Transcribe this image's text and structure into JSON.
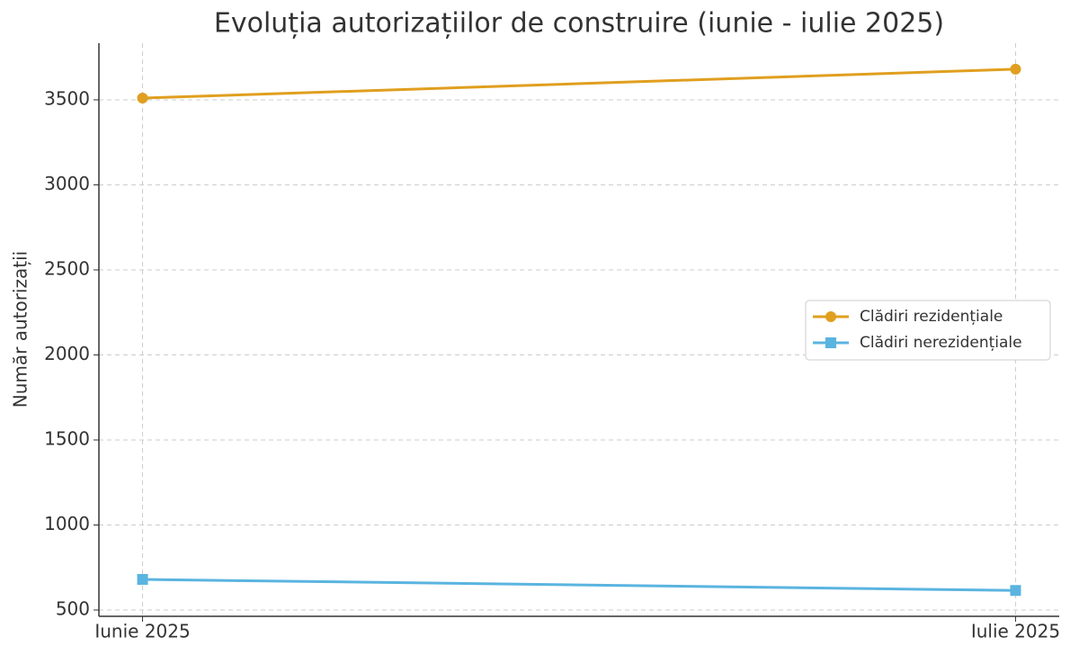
{
  "chart_data": {
    "type": "line",
    "title": "Evoluția autorizațiilor de construire (iunie - iulie 2025)",
    "y_label": "Număr autorizații",
    "categories": [
      "Iunie 2025",
      "Iulie 2025"
    ],
    "series": [
      {
        "name": "Clădiri rezidențiale",
        "color": "#e09f1f",
        "marker": "circle",
        "values": [
          3510,
          3680
        ]
      },
      {
        "name": "Clădiri nerezidențiale",
        "color": "#5ab4e0",
        "marker": "square",
        "values": [
          680,
          615
        ]
      }
    ],
    "ylim": [
      463,
      3833
    ],
    "yticks": [
      500,
      1000,
      1500,
      2000,
      2500,
      3000,
      3500
    ],
    "grid": true,
    "legend": "center right"
  }
}
